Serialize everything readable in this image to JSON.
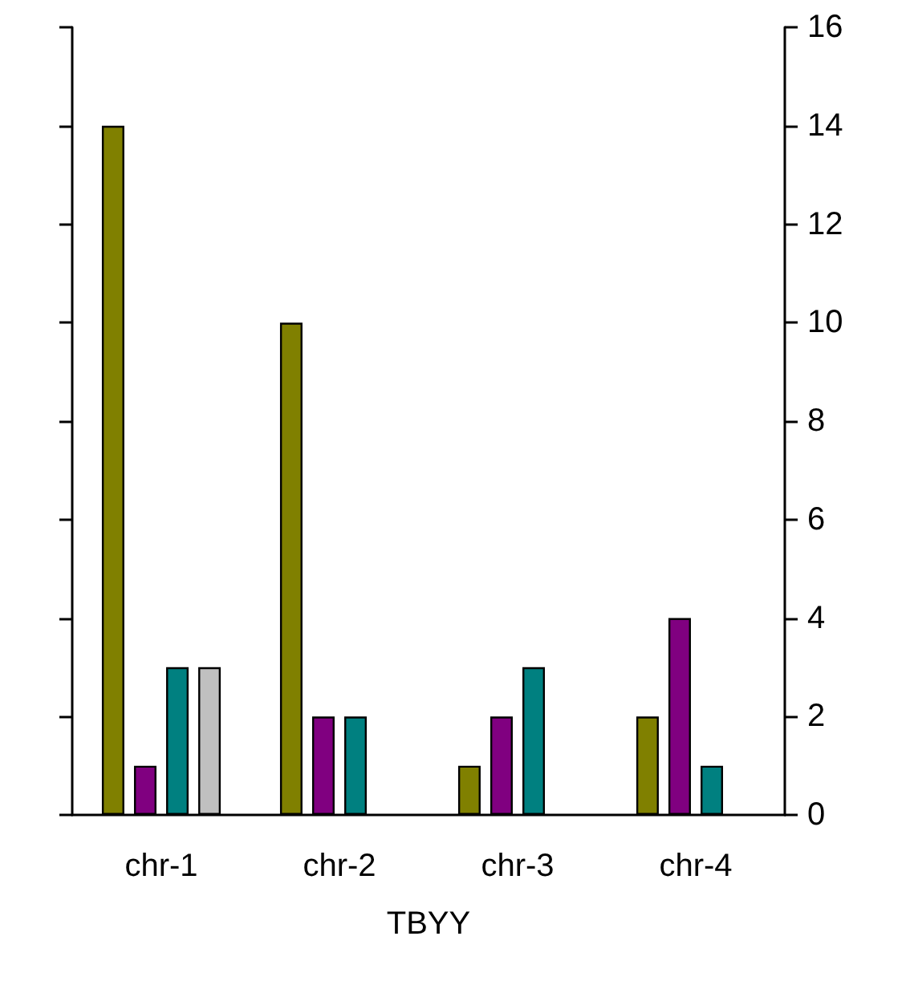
{
  "chart_data": {
    "type": "bar",
    "xlabel": "TBYY",
    "categories": [
      "chr-1",
      "chr-2",
      "chr-3",
      "chr-4"
    ],
    "series": [
      {
        "color": "#808000",
        "values": [
          14,
          10,
          1,
          2
        ]
      },
      {
        "color": "#800080",
        "values": [
          1,
          2,
          2,
          4
        ]
      },
      {
        "color": "#008080",
        "values": [
          3,
          2,
          3,
          1
        ]
      },
      {
        "color": "#c0c0c0",
        "values": [
          3,
          null,
          null,
          null
        ]
      }
    ],
    "ylim": [
      0,
      16
    ],
    "yticks": [
      0,
      2,
      4,
      6,
      8,
      10,
      12,
      14,
      16
    ],
    "grid": false
  }
}
